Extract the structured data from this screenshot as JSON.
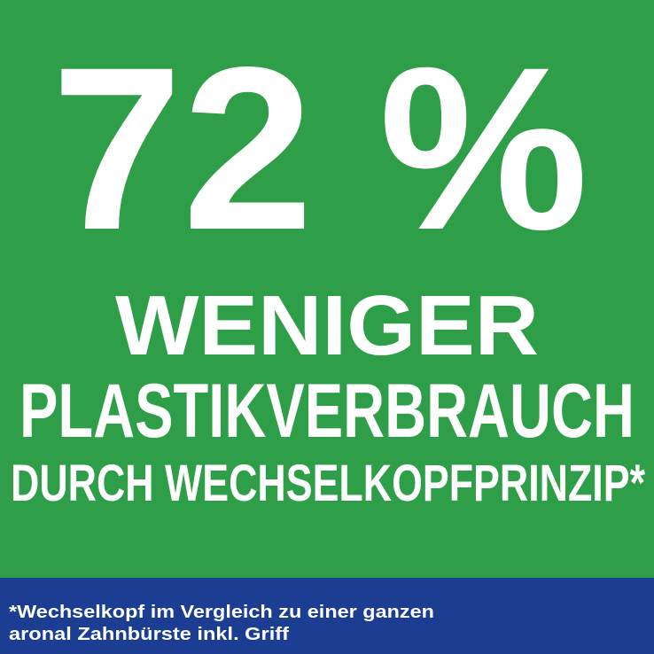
{
  "headline": {
    "figure": "72 %",
    "line1": "WENIGER",
    "line2": "PLASTIKVERBRAUCH",
    "line3": "DURCH WECHSELKOPFPRINZIP*"
  },
  "footnote": {
    "line1": "*Wechselkopf im Vergleich zu einer ganzen",
    "line2": "aronal Zahnbürste inkl. Griff"
  }
}
